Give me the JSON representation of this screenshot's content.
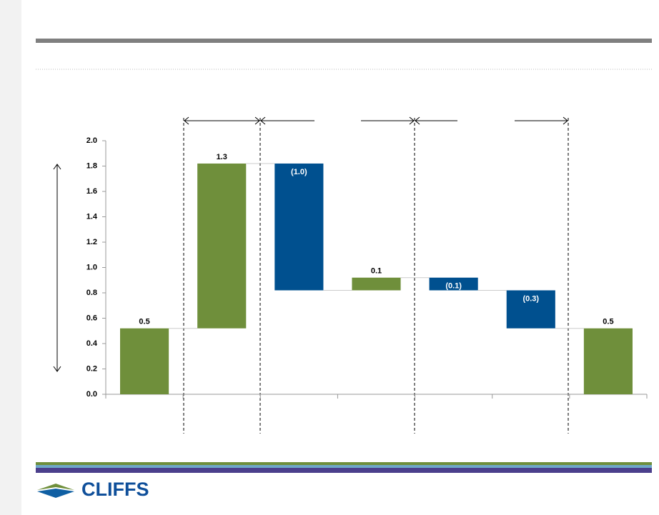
{
  "chart_data": {
    "type": "waterfall",
    "categories": [
      null,
      null,
      null,
      null,
      null,
      null,
      null
    ],
    "values": [
      0.52,
      1.3,
      -1.0,
      0.1,
      -0.1,
      -0.3,
      0.52
    ],
    "value_labels": [
      "0.5",
      "1.3",
      "(1.0)",
      "0.1",
      "(0.1)",
      "(0.3)",
      "0.5"
    ],
    "measure": [
      "absolute",
      "relative",
      "relative",
      "relative",
      "relative",
      "relative",
      "absolute"
    ],
    "colors": {
      "increase": "#6f8f3b",
      "decrease": "#00508f",
      "total": "#6f8f3b"
    },
    "ylim": [
      0,
      2.0
    ],
    "yticks": [
      {
        "value": 0,
        "label": "0.0"
      },
      0.2,
      0.4,
      0.6,
      0.8,
      {
        "value": 1.0,
        "label": "1.0"
      },
      1.2,
      1.4,
      1.6,
      1.8,
      {
        "value": 2.0,
        "label": "2.0"
      }
    ],
    "grid": false
  },
  "logo_text": "CLIFFS"
}
